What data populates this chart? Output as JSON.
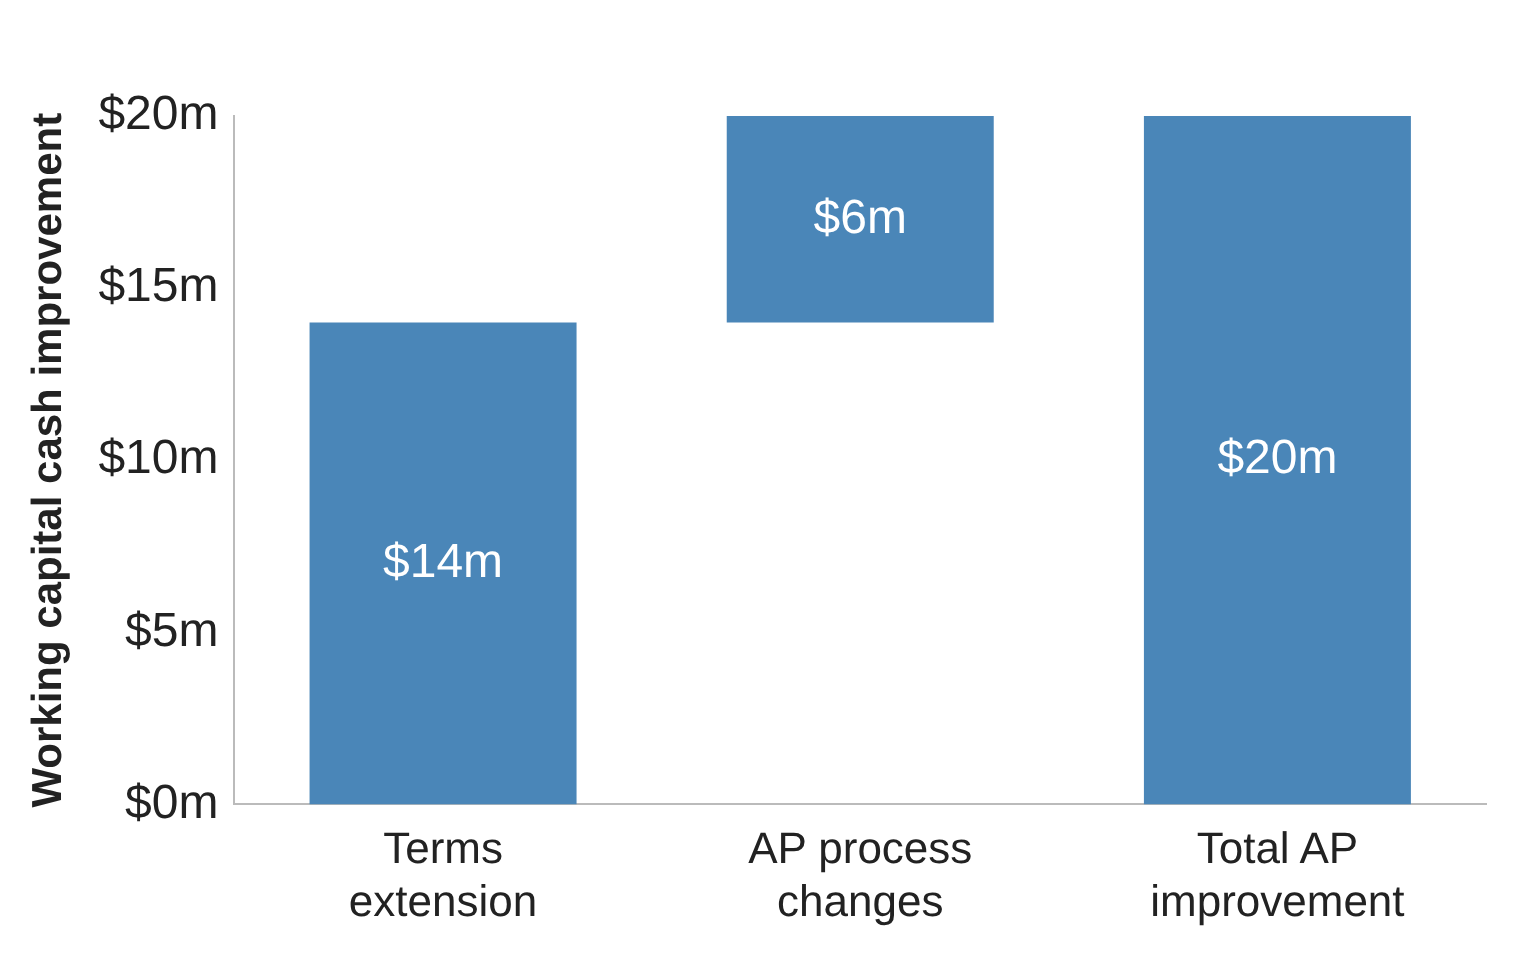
{
  "chart_data": {
    "type": "bar",
    "ylabel": "Working capital cash improvement",
    "categories": [
      "Terms extension",
      "AP process changes",
      "Total AP improvement"
    ],
    "values": [
      14,
      6,
      20
    ],
    "base": [
      0,
      14,
      0
    ],
    "value_labels": [
      "$14m",
      "$6m",
      "$20m"
    ],
    "color": "#4a86b8",
    "ylim": [
      0,
      20
    ],
    "yticks": [
      {
        "value": 0,
        "label": "$0m"
      },
      {
        "value": 5,
        "label": "$5m"
      },
      {
        "value": 10,
        "label": "$10m"
      },
      {
        "value": 15,
        "label": "$15m"
      },
      {
        "value": 20,
        "label": "$20m"
      }
    ],
    "grid": false,
    "legend": false
  }
}
